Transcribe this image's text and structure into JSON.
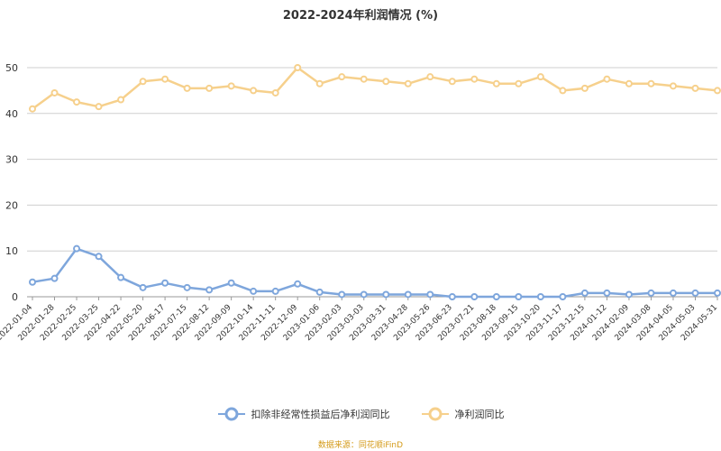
{
  "chart_data": {
    "type": "line",
    "title": "2022-2024年利润情况 (%)",
    "xlabel": "",
    "ylabel": "",
    "ylim": [
      0,
      50
    ],
    "yticks": [
      0,
      10,
      20,
      30,
      40,
      50
    ],
    "grid": true,
    "legend_position": "bottom",
    "categories": [
      "2022-01-04",
      "2022-01-28",
      "2022-02-25",
      "2022-03-25",
      "2022-04-22",
      "2022-05-20",
      "2022-06-17",
      "2022-07-15",
      "2022-08-12",
      "2022-09-09",
      "2022-10-14",
      "2022-11-11",
      "2022-12-09",
      "2023-01-06",
      "2023-02-03",
      "2023-03-03",
      "2023-03-31",
      "2023-04-28",
      "2023-05-26",
      "2023-06-23",
      "2023-07-21",
      "2023-08-18",
      "2023-09-15",
      "2023-10-20",
      "2023-11-17",
      "2023-12-15",
      "2024-01-12",
      "2024-02-09",
      "2024-03-08",
      "2024-04-05",
      "2024-05-03",
      "2024-05-31"
    ],
    "series": [
      {
        "name": "扣除非经常性损益后净利润同比",
        "color": "#7ea6dc",
        "values": [
          3.2,
          4.0,
          10.5,
          8.8,
          4.2,
          2.0,
          3.0,
          2.0,
          1.5,
          3.0,
          1.2,
          1.2,
          2.8,
          1.0,
          0.5,
          0.5,
          0.5,
          0.5,
          0.5,
          0.0,
          0.0,
          0.0,
          0.0,
          0.0,
          0.0,
          0.8,
          0.8,
          0.5,
          0.8,
          0.8,
          0.8,
          0.8
        ]
      },
      {
        "name": "净利润同比",
        "color": "#f6d08c",
        "values": [
          41.0,
          44.5,
          42.5,
          41.5,
          43.0,
          47.0,
          47.5,
          45.5,
          45.5,
          46.0,
          45.0,
          44.5,
          50.0,
          46.5,
          48.0,
          47.5,
          47.0,
          46.5,
          48.0,
          47.0,
          47.5,
          46.5,
          46.5,
          48.0,
          45.0,
          45.5,
          47.5,
          46.5,
          46.5,
          46.0,
          45.5,
          45.0
        ]
      }
    ]
  },
  "watermark": "数据来源：同花顺iFinD"
}
